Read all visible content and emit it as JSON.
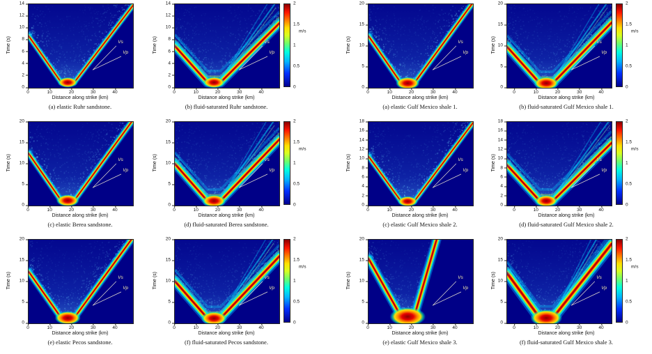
{
  "figure": {
    "axis_xlabel": "Distance along strike (km)",
    "axis_ylabel": "Time (s)",
    "colorbar_unit": "m/s",
    "colors": {
      "background_low": "#000087",
      "wavefront_core": "#b90000",
      "annotation_text": "#fdf3cf",
      "page_background": "#ffffff"
    }
  },
  "chart_data": [
    {
      "id": "sandstone-a",
      "group": "sandstone",
      "type": "heatmap",
      "caption": "(a)  elastic Ruhr sandstone.",
      "xlabel": "Distance along strike (km)",
      "ylabel": "Time (s)",
      "xlim": [
        0,
        48
      ],
      "xticks": [
        0,
        10,
        20,
        30,
        40
      ],
      "ylim": [
        0,
        14
      ],
      "yticks": [
        0,
        2,
        4,
        6,
        8,
        10,
        12,
        14
      ],
      "colorbar": false,
      "annotations": {
        "vs": "Vs",
        "vp": "Vp"
      },
      "front": {
        "apex_x_km": 18,
        "apex_t_s": 0.9,
        "t_at_x0_s": 8.7,
        "t_at_x48_s": 13.8
      },
      "style": {
        "spread": 1,
        "blob": 1,
        "secondary": false
      }
    },
    {
      "id": "sandstone-b",
      "group": "sandstone",
      "type": "heatmap",
      "caption": "(b)  fluid-saturated Ruhr sandstone.",
      "xlabel": "Distance along strike (km)",
      "ylabel": "Time (s)",
      "xlim": [
        0,
        48
      ],
      "xticks": [
        0,
        10,
        20,
        30,
        40
      ],
      "ylim": [
        0,
        14
      ],
      "yticks": [
        0,
        2,
        4,
        6,
        8,
        10,
        12,
        14
      ],
      "colorbar": {
        "ticks": [
          "2",
          "1.5",
          "1",
          "0.5",
          "0"
        ],
        "unit": "m/s",
        "range": [
          0,
          2
        ]
      },
      "annotations": {
        "vs": "Vs",
        "vp": "Vp"
      },
      "front": {
        "apex_x_km": 18,
        "apex_t_s": 0.9,
        "t_at_x0_s": 7.0,
        "t_at_x48_s": 10.8
      },
      "style": {
        "spread": 1.7,
        "blob": 1.1,
        "secondary": true
      }
    },
    {
      "id": "sandstone-c",
      "group": "sandstone",
      "type": "heatmap",
      "caption": "(c)  elastic Berea sandstone.",
      "xlabel": "Distance along strike (km)",
      "ylabel": "Time (s)",
      "xlim": [
        0,
        48
      ],
      "xticks": [
        0,
        10,
        20,
        30,
        40
      ],
      "ylim": [
        0,
        20
      ],
      "yticks": [
        0,
        5,
        10,
        15,
        20
      ],
      "colorbar": false,
      "annotations": {
        "vs": "Vs",
        "vp": "Vp"
      },
      "front": {
        "apex_x_km": 18,
        "apex_t_s": 1.2,
        "t_at_x0_s": 12.5,
        "t_at_x48_s": 20.5
      },
      "style": {
        "spread": 1.1,
        "blob": 1.15,
        "secondary": false
      }
    },
    {
      "id": "sandstone-d",
      "group": "sandstone",
      "type": "heatmap",
      "caption": "(d)  fluid-saturated Berea sandstone.",
      "xlabel": "Distance along strike (km)",
      "ylabel": "Time (s)",
      "xlim": [
        0,
        48
      ],
      "xticks": [
        0,
        10,
        20,
        30,
        40
      ],
      "ylim": [
        0,
        20
      ],
      "yticks": [
        0,
        5,
        10,
        15,
        20
      ],
      "colorbar": {
        "ticks": [
          "2",
          "1.5",
          "1",
          "0.5",
          "0"
        ],
        "unit": "m/s",
        "range": [
          0,
          2
        ]
      },
      "annotations": {
        "vs": "Vs",
        "vp": "Vp"
      },
      "front": {
        "apex_x_km": 18,
        "apex_t_s": 1.1,
        "t_at_x0_s": 10.0,
        "t_at_x48_s": 15.8
      },
      "style": {
        "spread": 1.7,
        "blob": 1.2,
        "secondary": true
      }
    },
    {
      "id": "sandstone-e",
      "group": "sandstone",
      "type": "heatmap",
      "caption": "(e)  elastic Pecos sandstone.",
      "xlabel": "Distance along strike (km)",
      "ylabel": "Time (s)",
      "xlim": [
        0,
        48
      ],
      "xticks": [
        0,
        10,
        20,
        30,
        40
      ],
      "ylim": [
        0,
        20
      ],
      "yticks": [
        0,
        5,
        10,
        15,
        20
      ],
      "colorbar": false,
      "annotations": {
        "vs": "Vs",
        "vp": "Vp"
      },
      "front": {
        "apex_x_km": 18,
        "apex_t_s": 1.3,
        "t_at_x0_s": 12.4,
        "t_at_x48_s": 20.6
      },
      "style": {
        "spread": 1.25,
        "blob": 1.3,
        "secondary": false
      }
    },
    {
      "id": "sandstone-f",
      "group": "sandstone",
      "type": "heatmap",
      "caption": "(f)  fluid-saturated Pecos sandstone.",
      "xlabel": "Distance along strike (km)",
      "ylabel": "Time (s)",
      "xlim": [
        0,
        48
      ],
      "xticks": [
        0,
        10,
        20,
        30,
        40
      ],
      "ylim": [
        0,
        20
      ],
      "yticks": [
        0,
        5,
        10,
        15,
        20
      ],
      "colorbar": {
        "ticks": [
          "2",
          "1.5",
          "1",
          "0.5",
          "0"
        ],
        "unit": "m/s",
        "range": [
          0,
          2
        ]
      },
      "annotations": {
        "vs": "Vs",
        "vp": "Vp"
      },
      "front": {
        "apex_x_km": 18,
        "apex_t_s": 1.2,
        "t_at_x0_s": 10.1,
        "t_at_x48_s": 16.0
      },
      "style": {
        "spread": 1.85,
        "blob": 1.3,
        "secondary": true
      }
    },
    {
      "id": "shale-a",
      "group": "shale",
      "type": "heatmap",
      "caption": "(a)  elastic Gulf Mexico shale 1.",
      "xlabel": "Distance along strike (km)",
      "ylabel": "Time (s)",
      "xlim": [
        0,
        48
      ],
      "xticks": [
        0,
        10,
        20,
        30,
        40
      ],
      "ylim": [
        0,
        20
      ],
      "yticks": [
        0,
        5,
        10,
        15,
        20
      ],
      "colorbar": false,
      "annotations": {
        "vs": "Vs",
        "vp": "Vp"
      },
      "front": {
        "apex_x_km": 18,
        "apex_t_s": 1.1,
        "t_at_x0_s": 12.4,
        "t_at_x48_s": 20.4
      },
      "style": {
        "spread": 1.1,
        "blob": 1.2,
        "secondary": false
      }
    },
    {
      "id": "shale-b",
      "group": "shale",
      "type": "heatmap",
      "caption": "(b)  fluid-saturated Gulf Mexico shale 1.",
      "xlabel": "Distance along strike (km)",
      "ylabel": "Time (s)",
      "xlim": [
        0,
        48
      ],
      "xticks": [
        0,
        10,
        20,
        30,
        40
      ],
      "ylim": [
        0,
        20
      ],
      "yticks": [
        0,
        5,
        10,
        15,
        20
      ],
      "colorbar": {
        "ticks": [
          "2",
          "1.5",
          "1",
          "0.5",
          "0"
        ],
        "unit": "m/s",
        "range": [
          0,
          2
        ]
      },
      "annotations": {
        "vs": "Vs",
        "vp": "Vp"
      },
      "front": {
        "apex_x_km": 18,
        "apex_t_s": 1.1,
        "t_at_x0_s": 9.8,
        "t_at_x48_s": 15.6
      },
      "style": {
        "spread": 1.75,
        "blob": 1.25,
        "secondary": true
      }
    },
    {
      "id": "shale-c",
      "group": "shale",
      "type": "heatmap",
      "caption": "(c)  elastic Gulf Mexico shale 2.",
      "xlabel": "Distance along strike (km)",
      "ylabel": "Time (s)",
      "xlim": [
        0,
        48
      ],
      "xticks": [
        0,
        10,
        20,
        30,
        40
      ],
      "ylim": [
        0,
        18
      ],
      "yticks": [
        0,
        2,
        4,
        6,
        8,
        10,
        12,
        14,
        16,
        18
      ],
      "colorbar": false,
      "annotations": {
        "vs": "Vs",
        "vp": "Vp"
      },
      "front": {
        "apex_x_km": 18,
        "apex_t_s": 0.9,
        "t_at_x0_s": 10.6,
        "t_at_x48_s": 17.8
      },
      "style": {
        "spread": 1,
        "blob": 1,
        "secondary": false
      }
    },
    {
      "id": "shale-d",
      "group": "shale",
      "type": "heatmap",
      "caption": "(d)  fluid-saturated Gulf Mexico shale 2.",
      "xlabel": "Distance along strike (km)",
      "ylabel": "Time (s)",
      "xlim": [
        0,
        48
      ],
      "xticks": [
        0,
        10,
        20,
        30,
        40
      ],
      "ylim": [
        0,
        18
      ],
      "yticks": [
        0,
        2,
        4,
        6,
        8,
        10,
        12,
        14,
        16,
        18
      ],
      "colorbar": {
        "ticks": [
          "2",
          "1.5",
          "1",
          "0.5",
          "0"
        ],
        "unit": "m/s",
        "range": [
          0,
          2
        ]
      },
      "annotations": {
        "vs": "Vs",
        "vp": "Vp"
      },
      "front": {
        "apex_x_km": 18,
        "apex_t_s": 1.0,
        "t_at_x0_s": 8.7,
        "t_at_x48_s": 13.5
      },
      "style": {
        "spread": 1.7,
        "blob": 1.15,
        "secondary": true
      }
    },
    {
      "id": "shale-e",
      "group": "shale",
      "type": "heatmap",
      "caption": "(e)  elastic Gulf Mexico shale 3.",
      "xlabel": "Distance along strike (km)",
      "ylabel": "Time (s)",
      "xlim": [
        0,
        48
      ],
      "xticks": [
        0,
        10,
        20,
        30,
        40
      ],
      "ylim": [
        0,
        20
      ],
      "yticks": [
        0,
        5,
        10,
        15,
        20
      ],
      "colorbar": false,
      "annotations": {
        "vs": "Vs",
        "vp": "Vp"
      },
      "front": {
        "apex_x_km": 18,
        "apex_t_s": 1.6,
        "t_at_x0_s": 15.5,
        "t_at_x48_s": 50.0
      },
      "style": {
        "spread": 1.6,
        "blob": 1.8,
        "secondary": false
      }
    },
    {
      "id": "shale-f",
      "group": "shale",
      "type": "heatmap",
      "caption": "(f)  fluid-saturated Gulf Mexico shale 3.",
      "xlabel": "Distance along strike (km)",
      "ylabel": "Time (s)",
      "xlim": [
        0,
        48
      ],
      "xticks": [
        0,
        10,
        20,
        30,
        40
      ],
      "ylim": [
        0,
        20
      ],
      "yticks": [
        0,
        5,
        10,
        15,
        20
      ],
      "colorbar": {
        "ticks": [
          "2",
          "1.5",
          "1",
          "0.5",
          "0"
        ],
        "unit": "m/s",
        "range": [
          0,
          2
        ]
      },
      "annotations": {
        "vs": "Vs",
        "vp": "Vp"
      },
      "front": {
        "apex_x_km": 18,
        "apex_t_s": 1.3,
        "t_at_x0_s": 12.0,
        "t_at_x48_s": 19.0
      },
      "style": {
        "spread": 2.1,
        "blob": 1.6,
        "secondary": true
      }
    }
  ]
}
